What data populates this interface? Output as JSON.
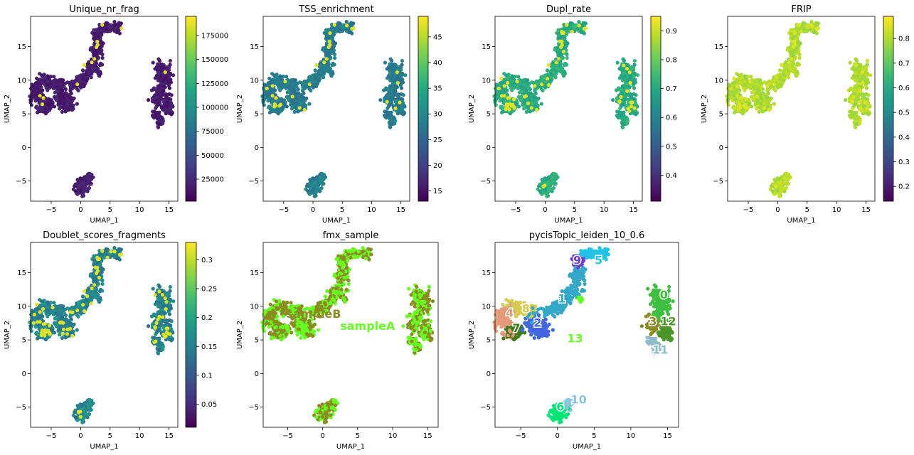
{
  "figure": {
    "background": "#ffffff"
  },
  "chart_data": [
    {
      "type": "scatter",
      "title": "Unique_nr_frag",
      "xlabel": "UMAP_1",
      "ylabel": "UMAP_2",
      "xlim": [
        -8.5,
        16.5
      ],
      "ylim": [
        -8,
        19.5
      ],
      "xticks": [
        -5,
        0,
        5,
        10,
        15
      ],
      "yticks": [
        -5,
        0,
        5,
        10,
        15
      ],
      "grid": false,
      "colormap": "viridis",
      "colorbar": {
        "range": [
          2000,
          195000
        ],
        "ticks": [
          25000,
          50000,
          75000,
          100000,
          125000,
          150000,
          175000
        ]
      },
      "point_color_levels": {
        "base": 0.08,
        "spread": 0.08,
        "highlight_fraction": 0.01
      }
    },
    {
      "type": "scatter",
      "title": "TSS_enrichment",
      "xlabel": "UMAP_1",
      "ylabel": "UMAP_2",
      "xlim": [
        -8.5,
        16.5
      ],
      "ylim": [
        -8,
        19.5
      ],
      "xticks": [
        -5,
        0,
        5,
        10,
        15
      ],
      "yticks": [
        -5,
        0,
        5,
        10,
        15
      ],
      "grid": false,
      "colormap": "viridis",
      "colorbar": {
        "range": [
          13,
          49
        ],
        "ticks": [
          15,
          20,
          25,
          30,
          35,
          40,
          45
        ]
      },
      "point_color_levels": {
        "base": 0.42,
        "spread": 0.14,
        "highlight_fraction": 0.02
      }
    },
    {
      "type": "scatter",
      "title": "Dupl_rate",
      "xlabel": "UMAP_1",
      "ylabel": "UMAP_2",
      "xlim": [
        -8.5,
        16.5
      ],
      "ylim": [
        -8,
        19.5
      ],
      "xticks": [
        -5,
        0,
        5,
        10,
        15
      ],
      "yticks": [
        -5,
        0,
        5,
        10,
        15
      ],
      "grid": false,
      "colormap": "viridis",
      "colorbar": {
        "range": [
          0.31,
          0.95
        ],
        "ticks": [
          0.4,
          0.5,
          0.6,
          0.7,
          0.8,
          0.9
        ]
      },
      "point_color_levels": {
        "base": 0.62,
        "spread": 0.12,
        "highlight_fraction": 0.04
      }
    },
    {
      "type": "scatter",
      "title": "FRIP",
      "xlabel": "UMAP_1",
      "ylabel": "UMAP_2",
      "xlim": [
        -8.5,
        16.5
      ],
      "ylim": [
        -8,
        19.5
      ],
      "xticks": [
        -5,
        0,
        5,
        10,
        15
      ],
      "yticks": [
        -5,
        0,
        5,
        10,
        15
      ],
      "grid": false,
      "colormap": "viridis",
      "colorbar": {
        "range": [
          0.14,
          0.89
        ],
        "ticks": [
          0.2,
          0.3,
          0.4,
          0.5,
          0.6,
          0.7,
          0.8
        ]
      },
      "point_color_levels": {
        "base": 0.88,
        "spread": 0.1,
        "highlight_fraction": 0.03
      }
    },
    {
      "type": "scatter",
      "title": "Doublet_scores_fragments",
      "xlabel": "UMAP_1",
      "ylabel": "UMAP_2",
      "xlim": [
        -8.5,
        16.5
      ],
      "ylim": [
        -8,
        19.5
      ],
      "xticks": [
        -5,
        0,
        5,
        10,
        15
      ],
      "yticks": [
        -5,
        0,
        5,
        10,
        15
      ],
      "grid": false,
      "colormap": "viridis",
      "colorbar": {
        "range": [
          0.01,
          0.33
        ],
        "ticks": [
          0.05,
          0.1,
          0.15,
          0.2,
          0.25,
          0.3
        ]
      },
      "point_color_levels": {
        "base": 0.45,
        "spread": 0.2,
        "highlight_fraction": 0.06
      }
    },
    {
      "type": "scatter",
      "title": "fmx_sample",
      "xlabel": "UMAP_1",
      "ylabel": "UMAP_2",
      "xlim": [
        -8.5,
        16.5
      ],
      "ylim": [
        -8,
        19.5
      ],
      "xticks": [
        -5,
        0,
        5,
        10,
        15
      ],
      "yticks": [
        -5,
        0,
        5,
        10,
        15
      ],
      "grid": false,
      "categorical": true,
      "categories": [
        {
          "name": "sampleA",
          "color": "#66ff22",
          "label_at": [
            2.5,
            6.5
          ]
        },
        {
          "name": "sampleB",
          "color": "#8b8b22",
          "label_at": [
            -5.2,
            8.3
          ]
        }
      ]
    },
    {
      "type": "scatter",
      "title": "pycisTopic_leiden_10_0.6",
      "xlabel": "UMAP_1",
      "ylabel": "UMAP_2",
      "xlim": [
        -8.5,
        16.5
      ],
      "ylim": [
        -8,
        19.5
      ],
      "xticks": [
        -5,
        0,
        5,
        10,
        15
      ],
      "yticks": [
        -5,
        0,
        5,
        10,
        15
      ],
      "grid": false,
      "categorical": true,
      "clusters": [
        {
          "name": "0",
          "color": "#3fbf3f",
          "center": [
            14.2,
            11.2
          ],
          "label_at": [
            14.5,
            11.8
          ]
        },
        {
          "name": "1",
          "color": "#33a8c8",
          "center": [
            0.8,
            10.6
          ],
          "label_at": [
            0.6,
            11.2
          ]
        },
        {
          "name": "2",
          "color": "#4166e0",
          "center": [
            -2.8,
            7.3
          ],
          "label_at": [
            -2.7,
            7.6
          ]
        },
        {
          "name": "3",
          "color": "#8b8b22",
          "center": [
            12.8,
            6.8
          ],
          "label_at": [
            13.0,
            7.8
          ]
        },
        {
          "name": "4",
          "color": "#e59a7a",
          "center": [
            -7.2,
            8.2
          ],
          "label_at": [
            -6.5,
            9.1
          ]
        },
        {
          "name": "5",
          "color": "#22c4e6",
          "center": [
            4.5,
            17.4
          ],
          "label_at": [
            5.6,
            16.9
          ]
        },
        {
          "name": "6",
          "color": "#00e676",
          "center": [
            0.2,
            -5.6
          ],
          "label_at": [
            0.4,
            -4.9
          ]
        },
        {
          "name": "7",
          "color": "#3c7a1a",
          "center": [
            -6.2,
            5.9
          ],
          "label_at": [
            -5.6,
            6.8
          ]
        },
        {
          "name": "8",
          "color": "#d6cc50",
          "center": [
            -5.0,
            9.2
          ],
          "label_at": [
            -4.3,
            9.7
          ]
        },
        {
          "name": "9",
          "color": "#6a3fd6",
          "center": [
            2.6,
            16.4
          ],
          "label_at": [
            2.7,
            16.9
          ]
        },
        {
          "name": "10",
          "color": "#88c8df",
          "center": [
            1.5,
            -4.6
          ],
          "label_at": [
            2.9,
            -3.8
          ]
        },
        {
          "name": "11",
          "color": "#8fbccc",
          "center": [
            13.0,
            4.6
          ],
          "label_at": [
            14.0,
            3.6
          ]
        },
        {
          "name": "12",
          "color": "#4a9628",
          "center": [
            14.6,
            6.4
          ],
          "label_at": [
            15.1,
            7.8
          ]
        },
        {
          "name": "13",
          "color": "#66ff22",
          "center": [
            2.4,
            11.2
          ],
          "label_at": [
            2.4,
            5.3
          ]
        }
      ]
    }
  ]
}
